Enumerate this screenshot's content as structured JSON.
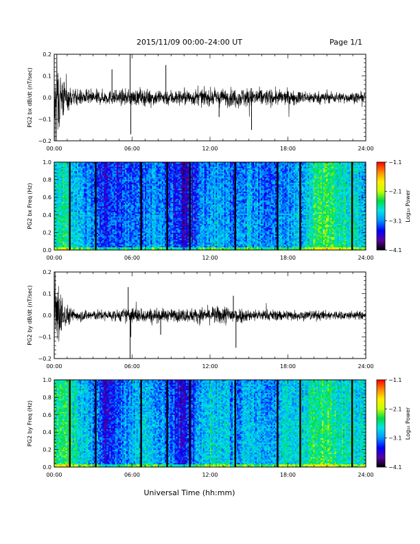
{
  "header": {
    "title": "2015/11/09  00:00–24:00 UT",
    "page": "Page 1/1"
  },
  "footer": {
    "xlabel": "Universal Time (hh:mm)"
  },
  "colors": {
    "trace": "#000000",
    "colormap": [
      "#000000",
      "#5a00a0",
      "#0000ff",
      "#0099ff",
      "#00e5e5",
      "#00dd44",
      "#ccff00",
      "#ffee00",
      "#ff8800",
      "#ff0000"
    ]
  },
  "chart_data": [
    {
      "type": "line",
      "ylabel": "PG2 bx dB/dt (nT/sec)",
      "xlim": [
        0,
        24
      ],
      "ylim": [
        -0.2,
        0.2
      ],
      "x_ticks": [
        "00:00",
        "06:00",
        "12:00",
        "18:00",
        "24:00"
      ],
      "y_ticks": [
        "−0.2",
        "−0.1",
        "0.0",
        "0.1",
        "0.2"
      ],
      "y_tick_values": [
        -0.2,
        -0.1,
        0.0,
        0.1,
        0.2
      ],
      "typical_amplitude": 0.025,
      "envelope": [
        {
          "x": 0.0,
          "y": 0.2
        },
        {
          "x": 0.3,
          "y": 0.22
        },
        {
          "x": 0.8,
          "y": 0.08
        },
        {
          "x": 1.5,
          "y": 0.04
        },
        {
          "x": 4.5,
          "y": 0.035
        },
        {
          "x": 6.0,
          "y": 0.04
        },
        {
          "x": 9.0,
          "y": 0.04
        },
        {
          "x": 12.0,
          "y": 0.04
        },
        {
          "x": 15.0,
          "y": 0.05
        },
        {
          "x": 17.0,
          "y": 0.04
        },
        {
          "x": 20.0,
          "y": 0.03
        },
        {
          "x": 24.0,
          "y": 0.025
        }
      ],
      "spikes": [
        {
          "x": 4.45,
          "y": 0.13
        },
        {
          "x": 5.85,
          "y": 0.2
        },
        {
          "x": 5.9,
          "y": -0.17
        },
        {
          "x": 8.6,
          "y": 0.15
        },
        {
          "x": 12.7,
          "y": -0.09
        },
        {
          "x": 15.2,
          "y": -0.15
        }
      ]
    },
    {
      "type": "heatmap",
      "ylabel": "PG2 bx Freq (Hz)",
      "xlim": [
        0,
        24
      ],
      "ylim": [
        0,
        1.0
      ],
      "x_ticks": [
        "00:00",
        "06:00",
        "12:00",
        "18:00",
        "24:00"
      ],
      "y_ticks": [
        "0.0",
        "0.2",
        "0.4",
        "0.6",
        "0.8",
        "1.0"
      ],
      "y_tick_values": [
        0,
        0.2,
        0.4,
        0.6,
        0.8,
        1.0
      ],
      "colorbar": {
        "label": "Log₁₀ Power",
        "ticks": [
          "−1.1",
          "−2.1",
          "−3.1",
          "−4.1"
        ],
        "tick_values": [
          -1.1,
          -2.1,
          -3.1,
          -4.1
        ],
        "range": [
          -4.1,
          -1.1
        ]
      },
      "data_gaps": [
        1.2,
        3.2,
        6.7,
        8.7,
        10.45,
        13.95,
        17.2,
        18.95,
        22.95
      ],
      "power_profile": [
        {
          "x": 0,
          "v": -2.6
        },
        {
          "x": 1,
          "v": -2.6
        },
        {
          "x": 2,
          "v": -2.9
        },
        {
          "x": 3,
          "v": -3.1
        },
        {
          "x": 4,
          "v": -3.4
        },
        {
          "x": 5,
          "v": -3.2
        },
        {
          "x": 6,
          "v": -3.1
        },
        {
          "x": 7,
          "v": -3.1
        },
        {
          "x": 8,
          "v": -3.0
        },
        {
          "x": 9,
          "v": -3.2
        },
        {
          "x": 10,
          "v": -3.5
        },
        {
          "x": 11,
          "v": -3.2
        },
        {
          "x": 12,
          "v": -2.9
        },
        {
          "x": 13,
          "v": -3.0
        },
        {
          "x": 14,
          "v": -3.2
        },
        {
          "x": 15,
          "v": -2.9
        },
        {
          "x": 16,
          "v": -3.1
        },
        {
          "x": 17,
          "v": -3.1
        },
        {
          "x": 18,
          "v": -2.9
        },
        {
          "x": 19,
          "v": -3.0
        },
        {
          "x": 20,
          "v": -2.5
        },
        {
          "x": 21,
          "v": -2.4
        },
        {
          "x": 22,
          "v": -2.6
        },
        {
          "x": 23,
          "v": -2.7
        },
        {
          "x": 24,
          "v": -2.8
        }
      ]
    },
    {
      "type": "line",
      "ylabel": "PG2 by dB/dt (nT/sec)",
      "xlim": [
        0,
        24
      ],
      "ylim": [
        -0.2,
        0.2
      ],
      "x_ticks": [
        "00:00",
        "06:00",
        "12:00",
        "18:00",
        "24:00"
      ],
      "y_ticks": [
        "−0.2",
        "−0.1",
        "0.0",
        "0.1",
        "0.2"
      ],
      "y_tick_values": [
        -0.2,
        -0.1,
        0.0,
        0.1,
        0.2
      ],
      "typical_amplitude": 0.02,
      "envelope": [
        {
          "x": 0.0,
          "y": 0.12
        },
        {
          "x": 0.3,
          "y": 0.18
        },
        {
          "x": 0.8,
          "y": 0.06
        },
        {
          "x": 1.5,
          "y": 0.03
        },
        {
          "x": 4.5,
          "y": 0.025
        },
        {
          "x": 6.0,
          "y": 0.04
        },
        {
          "x": 9.0,
          "y": 0.03
        },
        {
          "x": 12.0,
          "y": 0.04
        },
        {
          "x": 13.5,
          "y": 0.05
        },
        {
          "x": 15.0,
          "y": 0.03
        },
        {
          "x": 20.0,
          "y": 0.025
        },
        {
          "x": 24.0,
          "y": 0.02
        }
      ],
      "spikes": [
        {
          "x": 5.7,
          "y": 0.13
        },
        {
          "x": 5.85,
          "y": -0.21
        },
        {
          "x": 5.9,
          "y": -0.1
        },
        {
          "x": 8.2,
          "y": -0.09
        },
        {
          "x": 13.8,
          "y": 0.09
        },
        {
          "x": 14.0,
          "y": -0.15
        }
      ]
    },
    {
      "type": "heatmap",
      "ylabel": "PG2 by Freq (Hz)",
      "xlim": [
        0,
        24
      ],
      "ylim": [
        0,
        1.0
      ],
      "x_ticks": [
        "00:00",
        "06:00",
        "12:00",
        "18:00",
        "24:00"
      ],
      "y_ticks": [
        "0.0",
        "0.2",
        "0.4",
        "0.6",
        "0.8",
        "1.0"
      ],
      "y_tick_values": [
        0,
        0.2,
        0.4,
        0.6,
        0.8,
        1.0
      ],
      "colorbar": {
        "label": "Log₁₀ Power",
        "ticks": [
          "−1.1",
          "−2.1",
          "−3.1",
          "−4.1"
        ],
        "tick_values": [
          -1.1,
          -2.1,
          -3.1,
          -4.1
        ],
        "range": [
          -4.1,
          -1.1
        ]
      },
      "data_gaps": [
        1.2,
        3.2,
        6.7,
        8.7,
        10.45,
        13.95,
        17.2,
        18.95,
        22.95
      ],
      "power_profile": [
        {
          "x": 0,
          "v": -2.5
        },
        {
          "x": 1,
          "v": -2.5
        },
        {
          "x": 2,
          "v": -2.7
        },
        {
          "x": 3,
          "v": -3.0
        },
        {
          "x": 4,
          "v": -3.4
        },
        {
          "x": 5,
          "v": -3.1
        },
        {
          "x": 6,
          "v": -2.9
        },
        {
          "x": 7,
          "v": -2.9
        },
        {
          "x": 8,
          "v": -2.9
        },
        {
          "x": 9,
          "v": -3.1
        },
        {
          "x": 10,
          "v": -3.5
        },
        {
          "x": 11,
          "v": -3.1
        },
        {
          "x": 12,
          "v": -2.7
        },
        {
          "x": 13,
          "v": -2.8
        },
        {
          "x": 14,
          "v": -3.0
        },
        {
          "x": 15,
          "v": -2.8
        },
        {
          "x": 16,
          "v": -2.9
        },
        {
          "x": 17,
          "v": -2.9
        },
        {
          "x": 18,
          "v": -2.7
        },
        {
          "x": 19,
          "v": -2.8
        },
        {
          "x": 20,
          "v": -2.5
        },
        {
          "x": 21,
          "v": -2.4
        },
        {
          "x": 22,
          "v": -2.6
        },
        {
          "x": 23,
          "v": -2.7
        },
        {
          "x": 24,
          "v": -2.8
        }
      ]
    }
  ]
}
